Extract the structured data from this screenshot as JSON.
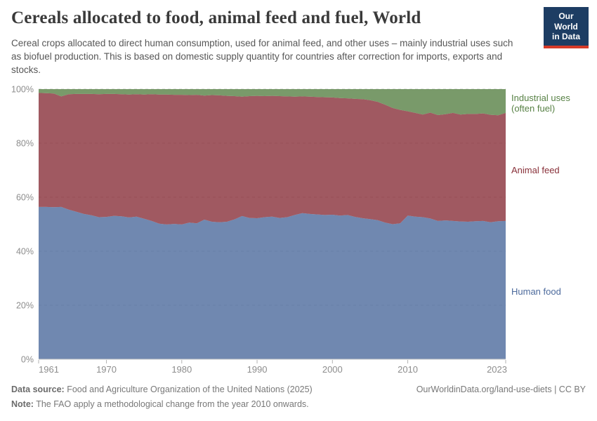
{
  "header": {
    "title": "Cereals allocated to food, animal feed and fuel, World",
    "subtitle": "Cereal crops allocated to direct human consumption, used for animal feed, and other uses – mainly industrial uses such as biofuel production. This is based on domestic supply quantity for countries after correction for imports, exports and stocks.",
    "logo": {
      "line1": "Our World",
      "line2": "in Data",
      "bg_color": "#1d3d63",
      "accent_color": "#d63a28"
    }
  },
  "chart_data": {
    "type": "area",
    "stacked": true,
    "title": "Cereals allocated to food, animal feed and fuel, World",
    "xlabel": "",
    "ylabel": "",
    "unit": "%",
    "ylim": [
      0,
      100
    ],
    "grid": "dashed-horizontal",
    "legend_position": "right-annotations",
    "x_ticks": [
      1961,
      1970,
      1980,
      1990,
      2000,
      2010,
      2023
    ],
    "y_ticks": [
      0,
      20,
      40,
      60,
      80,
      100
    ],
    "y_tick_labels": [
      "0%",
      "20%",
      "40%",
      "60%",
      "80%",
      "100%"
    ],
    "x": [
      1961,
      1962,
      1963,
      1964,
      1965,
      1966,
      1967,
      1968,
      1969,
      1970,
      1971,
      1972,
      1973,
      1974,
      1975,
      1976,
      1977,
      1978,
      1979,
      1980,
      1981,
      1982,
      1983,
      1984,
      1985,
      1986,
      1987,
      1988,
      1989,
      1990,
      1991,
      1992,
      1993,
      1994,
      1995,
      1996,
      1997,
      1998,
      1999,
      2000,
      2001,
      2002,
      2003,
      2004,
      2005,
      2006,
      2007,
      2008,
      2009,
      2010,
      2011,
      2012,
      2013,
      2014,
      2015,
      2016,
      2017,
      2018,
      2019,
      2020,
      2021,
      2022,
      2023
    ],
    "series": [
      {
        "id": "human-food",
        "name": "Human food",
        "color": "#4C6A9C",
        "fill_opacity": 0.8,
        "values": [
          56.4,
          56.4,
          56.3,
          56.4,
          55.4,
          54.6,
          53.8,
          53.3,
          52.6,
          52.7,
          53.1,
          52.9,
          52.5,
          52.8,
          52.0,
          51.2,
          50.2,
          49.9,
          50.1,
          49.9,
          50.6,
          50.3,
          51.7,
          50.9,
          50.7,
          50.9,
          51.8,
          53.0,
          52.3,
          52.2,
          52.6,
          52.8,
          52.3,
          52.6,
          53.4,
          54.1,
          53.8,
          53.6,
          53.4,
          53.5,
          53.2,
          53.4,
          52.7,
          52.2,
          51.9,
          51.5,
          50.6,
          50.0,
          50.3,
          53.2,
          52.8,
          52.6,
          52.1,
          51.2,
          51.4,
          51.2,
          51.0,
          50.9,
          51.1,
          51.2,
          50.7,
          51.1,
          51.2
        ]
      },
      {
        "id": "animal-feed",
        "name": "Animal feed",
        "color": "#883039",
        "fill_opacity": 0.8,
        "values": [
          42.2,
          42.1,
          42.1,
          40.9,
          42.7,
          43.6,
          44.4,
          44.9,
          45.5,
          45.5,
          45.1,
          45.2,
          45.5,
          45.3,
          46.0,
          46.9,
          47.8,
          48.1,
          47.8,
          48.0,
          47.2,
          47.6,
          45.9,
          46.9,
          47.0,
          46.6,
          45.6,
          44.2,
          45.1,
          45.3,
          44.8,
          44.7,
          45.1,
          44.7,
          43.8,
          43.2,
          43.4,
          43.5,
          43.6,
          43.4,
          43.5,
          43.2,
          43.7,
          44.1,
          44.0,
          43.8,
          43.6,
          43.0,
          42.0,
          38.6,
          38.4,
          38.0,
          39.2,
          39.2,
          39.3,
          40.0,
          39.6,
          39.9,
          39.7,
          39.8,
          39.8,
          39.2,
          40.0
        ]
      },
      {
        "id": "industrial-uses",
        "name": "Industrial uses (often fuel)",
        "color": "#578145",
        "fill_opacity": 0.8,
        "values": [
          1.4,
          1.5,
          1.6,
          2.7,
          1.9,
          1.8,
          1.8,
          1.8,
          1.9,
          1.8,
          1.8,
          1.9,
          2.0,
          1.9,
          2.0,
          1.9,
          2.0,
          2.0,
          2.1,
          2.1,
          2.2,
          2.1,
          2.4,
          2.2,
          2.3,
          2.5,
          2.6,
          2.8,
          2.6,
          2.5,
          2.6,
          2.5,
          2.6,
          2.7,
          2.8,
          2.7,
          2.8,
          2.9,
          3.0,
          3.1,
          3.3,
          3.4,
          3.6,
          3.7,
          4.1,
          4.7,
          5.8,
          7.0,
          7.7,
          8.2,
          8.8,
          9.4,
          8.7,
          9.6,
          9.3,
          8.8,
          9.4,
          9.2,
          9.2,
          9.0,
          9.5,
          9.7,
          8.8
        ]
      }
    ]
  },
  "footer": {
    "source_label": "Data source:",
    "source_text": " Food and Agriculture Organization of the United Nations (2025)",
    "note_label": "Note:",
    "note_text": " The FAO apply a methodological change from the year 2010 onwards.",
    "link_text": "OurWorldinData.org/land-use-diets | CC BY"
  }
}
